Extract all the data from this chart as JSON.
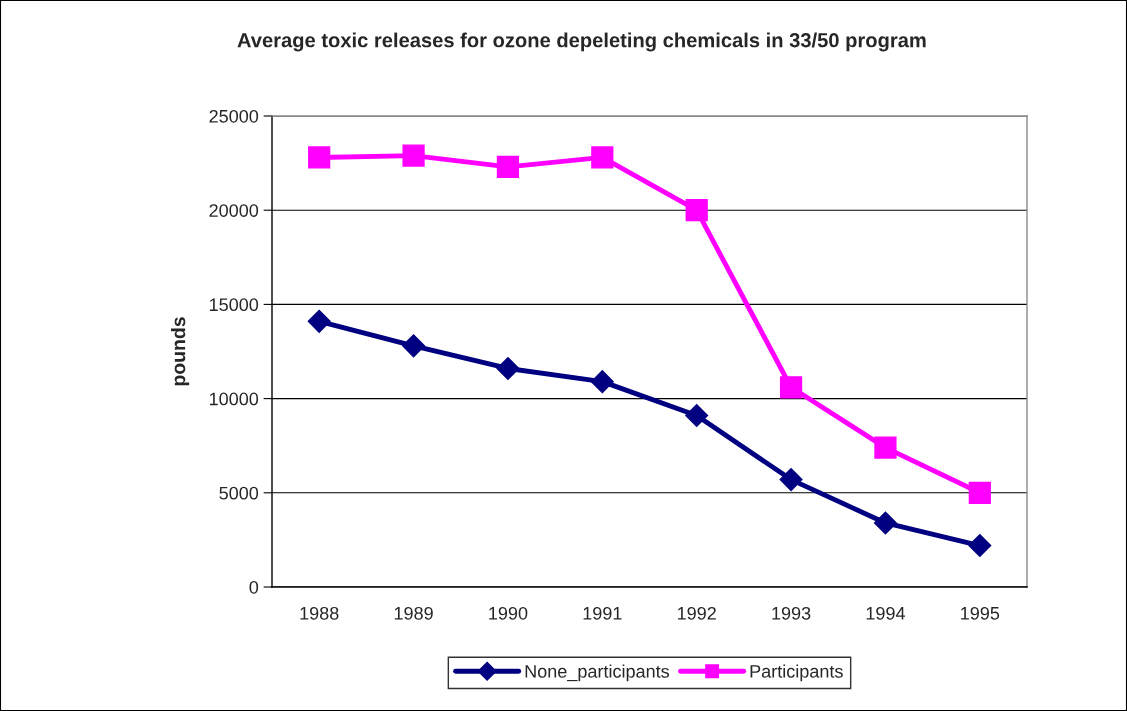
{
  "chart_data": {
    "type": "line",
    "title": "Average toxic releases for ozone depeleting chemicals in 33/50 program",
    "ylabel": "pounds",
    "categories": [
      "1988",
      "1989",
      "1990",
      "1991",
      "1992",
      "1993",
      "1994",
      "1995"
    ],
    "series": [
      {
        "name": "None_participants",
        "color": "#000080",
        "marker": "diamond",
        "values": [
          14100,
          12800,
          11600,
          10900,
          9100,
          5700,
          3400,
          2200
        ]
      },
      {
        "name": "Participants",
        "color": "#ff00ff",
        "marker": "square",
        "values": [
          22800,
          22900,
          22300,
          22800,
          20000,
          10600,
          7400,
          5000
        ]
      }
    ],
    "ylim": [
      0,
      25000
    ],
    "yticks": [
      0,
      5000,
      10000,
      15000,
      20000,
      25000
    ],
    "grid": "y",
    "legend": "bottom",
    "line_style": "solid"
  }
}
